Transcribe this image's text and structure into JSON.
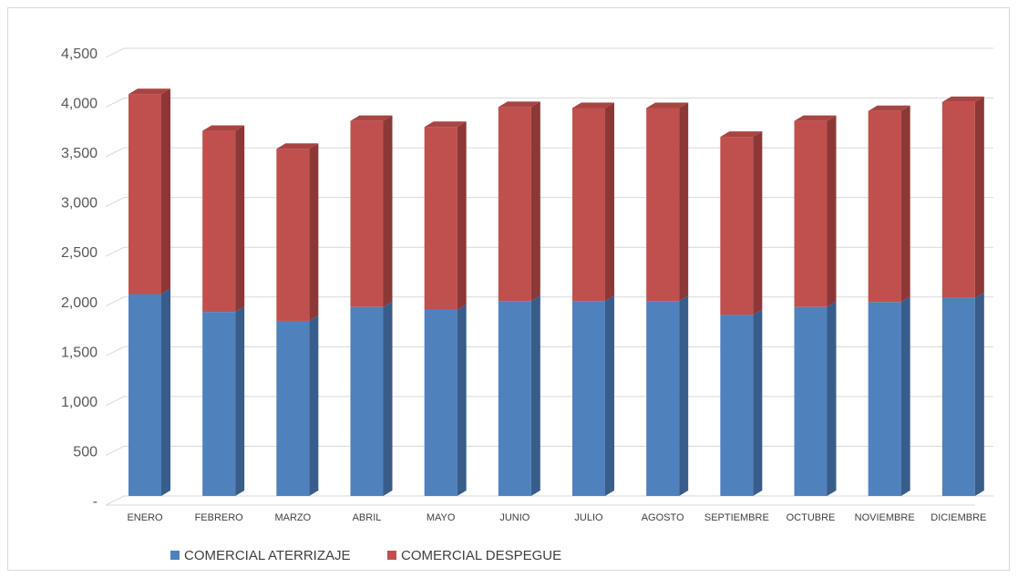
{
  "chart_data": {
    "type": "bar",
    "stacked": true,
    "style": "3d-column",
    "categories": [
      "ENERO",
      "FEBRERO",
      "MARZO",
      "ABRIL",
      "MAYO",
      "JUNIO",
      "JULIO",
      "AGOSTO",
      "SEPTIEMBRE",
      "OCTUBRE",
      "NOVIEMBRE",
      "DICIEMBRE"
    ],
    "series": [
      {
        "name": "COMERCIAL ATERRIZAJE",
        "color": "#4f81bd",
        "side_color": "#385d8a",
        "top_color": "#4a78b0",
        "values": [
          2030,
          1850,
          1760,
          1900,
          1870,
          1960,
          1960,
          1960,
          1820,
          1900,
          1950,
          1990
        ]
      },
      {
        "name": "COMERCIAL DESPEGUE",
        "color": "#c0504d",
        "side_color": "#8c3836",
        "top_color": "#a84542",
        "values": [
          2010,
          1820,
          1730,
          1870,
          1840,
          1950,
          1940,
          1940,
          1790,
          1870,
          1920,
          1970
        ]
      }
    ],
    "y_ticks": [
      {
        "value": 0,
        "label": "-"
      },
      {
        "value": 500,
        "label": "500"
      },
      {
        "value": 1000,
        "label": "1,000"
      },
      {
        "value": 1500,
        "label": "1,500"
      },
      {
        "value": 2000,
        "label": "2,000"
      },
      {
        "value": 2500,
        "label": "2,500"
      },
      {
        "value": 3000,
        "label": "3,000"
      },
      {
        "value": 3500,
        "label": "3,500"
      },
      {
        "value": 4000,
        "label": "4,000"
      },
      {
        "value": 4500,
        "label": "4,500"
      }
    ],
    "ylim": [
      0,
      4500
    ],
    "grid": true,
    "legend": "bottom-left",
    "title": "",
    "xlabel": "",
    "ylabel": ""
  }
}
